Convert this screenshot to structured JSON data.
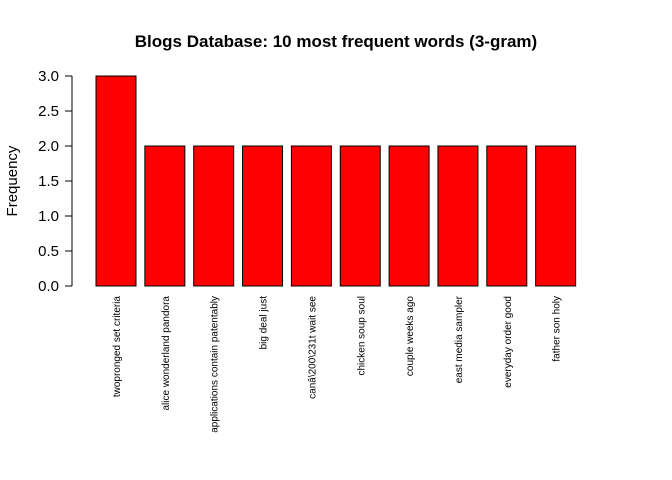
{
  "chart_data": {
    "type": "bar",
    "title": "Blogs Database: 10 most frequent words (3-gram)",
    "xlabel": "",
    "ylabel": "Frequency",
    "categories": [
      "twopronged set criteria",
      "alice wonderland pandora",
      "applications contain patentably",
      "big deal just",
      "canâ\\200\\231t wait see",
      "chicken soup soul",
      "couple weeks ago",
      "east media sampler",
      "everyday order good",
      "father son holy"
    ],
    "values": [
      3,
      2,
      2,
      2,
      2,
      2,
      2,
      2,
      2,
      2
    ],
    "ylim": [
      0,
      3
    ],
    "yticks": [
      "0.0",
      "0.5",
      "1.0",
      "1.5",
      "2.0",
      "2.5",
      "3.0"
    ],
    "bar_color": "#ff0000",
    "bar_border": "#000000",
    "grid": false,
    "legend": "none"
  }
}
